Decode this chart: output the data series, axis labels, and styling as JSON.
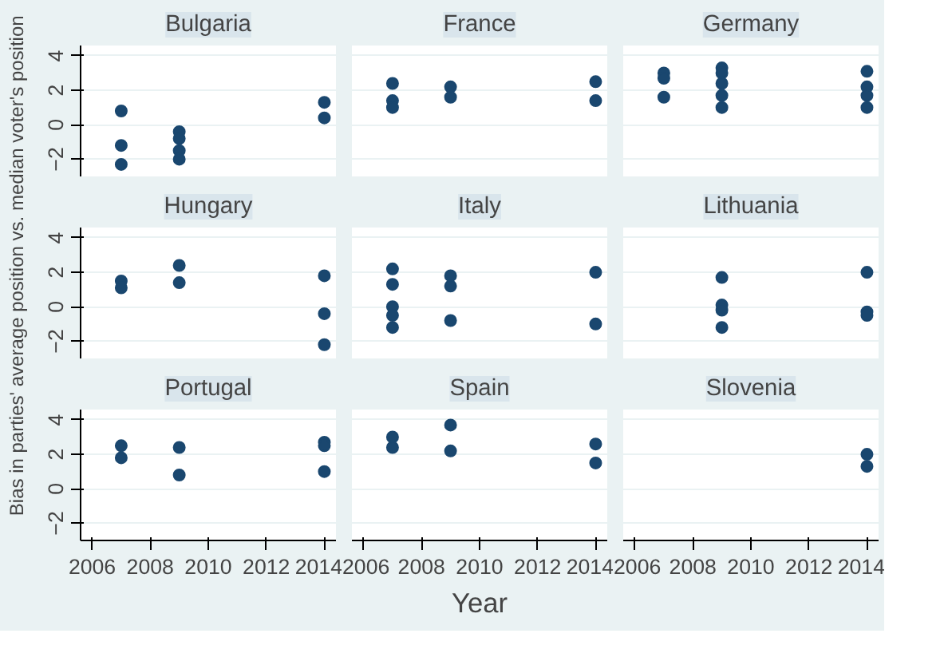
{
  "chart_data": [
    {
      "type": "scatter",
      "title": "Bulgaria",
      "x": [
        2007,
        2007,
        2007,
        2009,
        2009,
        2009,
        2009,
        2014,
        2014
      ],
      "values": [
        0.8,
        -1.2,
        -2.3,
        -0.4,
        -0.8,
        -1.5,
        -2.0,
        1.3,
        0.4
      ],
      "color": "#1a476f",
      "marker": "circle",
      "xlim": [
        2005.6,
        2014.4
      ],
      "ylim": [
        -3,
        4.6
      ],
      "xticks": [
        2006,
        2008,
        2010,
        2012,
        2014
      ],
      "yticks": [
        -2,
        0,
        2,
        4
      ],
      "grid": "y",
      "tick_labels": "y"
    },
    {
      "type": "scatter",
      "title": "France",
      "x": [
        2007,
        2007,
        2007,
        2009,
        2009,
        2014,
        2014
      ],
      "values": [
        2.4,
        1.4,
        1.0,
        2.2,
        1.6,
        2.5,
        1.4
      ],
      "color": "#1a476f",
      "marker": "circle",
      "xlim": [
        2005.6,
        2014.4
      ],
      "ylim": [
        -3,
        4.6
      ],
      "xticks": [
        2006,
        2008,
        2010,
        2012,
        2014
      ],
      "yticks": [
        -2,
        0,
        2,
        4
      ],
      "grid": "y",
      "tick_labels": false
    },
    {
      "type": "scatter",
      "title": "Germany",
      "x": [
        2007,
        2007,
        2007,
        2009,
        2009,
        2009,
        2009,
        2009,
        2014,
        2014,
        2014,
        2014
      ],
      "values": [
        3.0,
        2.7,
        1.6,
        3.3,
        3.0,
        2.4,
        1.7,
        1.0,
        3.1,
        2.2,
        1.7,
        1.0
      ],
      "color": "#1a476f",
      "marker": "circle",
      "xlim": [
        2005.6,
        2014.4
      ],
      "ylim": [
        -3,
        4.6
      ],
      "xticks": [
        2006,
        2008,
        2010,
        2012,
        2014
      ],
      "yticks": [
        -2,
        0,
        2,
        4
      ],
      "grid": "y",
      "tick_labels": false
    },
    {
      "type": "scatter",
      "title": "Hungary",
      "ylabel": "Bias in parties' average position vs. median voter's position",
      "x": [
        2007,
        2007,
        2009,
        2009,
        2014,
        2014,
        2014
      ],
      "values": [
        1.5,
        1.1,
        2.4,
        1.4,
        1.8,
        -0.4,
        -2.2
      ],
      "color": "#1a476f",
      "marker": "circle",
      "xlim": [
        2005.6,
        2014.4
      ],
      "ylim": [
        -3,
        4.6
      ],
      "xticks": [
        2006,
        2008,
        2010,
        2012,
        2014
      ],
      "yticks": [
        -2,
        0,
        2,
        4
      ],
      "grid": "y",
      "tick_labels": "y"
    },
    {
      "type": "scatter",
      "title": "Italy",
      "x": [
        2007,
        2007,
        2007,
        2007,
        2007,
        2009,
        2009,
        2009,
        2014,
        2014
      ],
      "values": [
        2.2,
        1.3,
        0.0,
        -0.5,
        -1.2,
        1.8,
        1.2,
        -0.8,
        2.0,
        -1.0
      ],
      "color": "#1a476f",
      "marker": "circle",
      "xlim": [
        2005.6,
        2014.4
      ],
      "ylim": [
        -3,
        4.6
      ],
      "xticks": [
        2006,
        2008,
        2010,
        2012,
        2014
      ],
      "yticks": [
        -2,
        0,
        2,
        4
      ],
      "grid": "y",
      "tick_labels": false
    },
    {
      "type": "scatter",
      "title": "Lithuania",
      "x": [
        2009,
        2009,
        2009,
        2009,
        2014,
        2014,
        2014
      ],
      "values": [
        1.7,
        0.1,
        -0.2,
        -1.2,
        2.0,
        -0.3,
        -0.5
      ],
      "color": "#1a476f",
      "marker": "circle",
      "xlim": [
        2005.6,
        2014.4
      ],
      "ylim": [
        -3,
        4.6
      ],
      "xticks": [
        2006,
        2008,
        2010,
        2012,
        2014
      ],
      "yticks": [
        -2,
        0,
        2,
        4
      ],
      "grid": "y",
      "tick_labels": false
    },
    {
      "type": "scatter",
      "title": "Portugal",
      "x": [
        2007,
        2007,
        2009,
        2009,
        2014,
        2014,
        2014
      ],
      "values": [
        2.5,
        1.8,
        2.4,
        0.8,
        2.7,
        2.5,
        1.0
      ],
      "color": "#1a476f",
      "marker": "circle",
      "xlim": [
        2005.6,
        2014.4
      ],
      "ylim": [
        -3,
        4.6
      ],
      "xticks": [
        2006,
        2008,
        2010,
        2012,
        2014
      ],
      "yticks": [
        -2,
        0,
        2,
        4
      ],
      "grid": "y"
    },
    {
      "type": "scatter",
      "title": "Spain",
      "xlabel": "Year",
      "x": [
        2007,
        2007,
        2009,
        2009,
        2014,
        2014
      ],
      "values": [
        3.0,
        2.4,
        3.7,
        2.2,
        2.6,
        1.5
      ],
      "color": "#1a476f",
      "marker": "circle",
      "xlim": [
        2005.6,
        2014.4
      ],
      "ylim": [
        -3,
        4.6
      ],
      "xticks": [
        2006,
        2008,
        2010,
        2012,
        2014
      ],
      "yticks": [
        -2,
        0,
        2,
        4
      ],
      "grid": "y",
      "tick_labels": "x"
    },
    {
      "type": "scatter",
      "title": "Slovenia",
      "x": [
        2014,
        2014
      ],
      "values": [
        2.0,
        1.3
      ],
      "color": "#1a476f",
      "marker": "circle",
      "xlim": [
        2005.6,
        2014.4
      ],
      "ylim": [
        -3,
        4.6
      ],
      "xticks": [
        2006,
        2008,
        2010,
        2012,
        2014
      ],
      "yticks": [
        -2,
        0,
        2,
        4
      ],
      "grid": "y",
      "tick_labels": "x"
    }
  ]
}
